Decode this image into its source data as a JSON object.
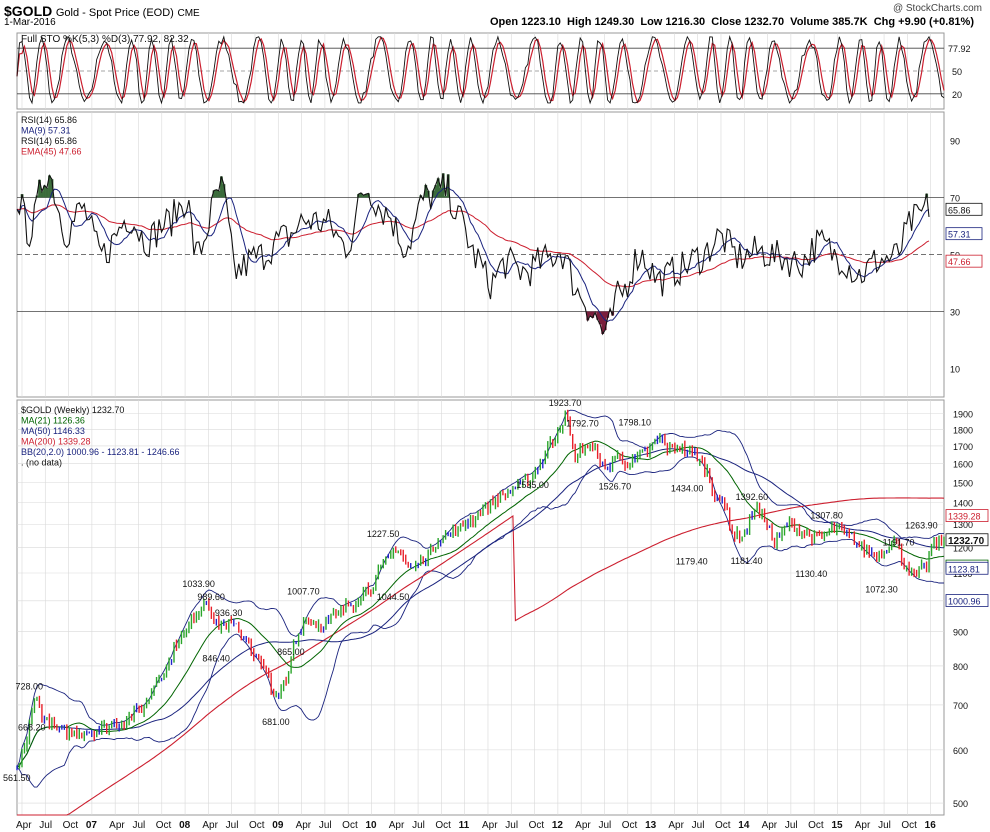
{
  "header": {
    "symbol": "$GOLD",
    "description": "Gold - Spot Price (EOD)",
    "exchange": "CME",
    "date": "1-Mar-2016",
    "watermark": "@ StockCharts.com",
    "ohlc_text": "Open 1223.10  High 1249.30  Low 1216.30  Close 1232.70  Volume 385.7K  Chg +9.90 (+0.81%)"
  },
  "colors": {
    "up": "#2aa52a",
    "down": "#e8202a",
    "neutral": "#2222cc",
    "ma21": "#006400",
    "ma50": "#1a237e",
    "ma200": "#cc1f2f",
    "bb": "#1a237e",
    "rsi": "#111111",
    "rsi_ma": "#1a237e",
    "rsi_ema": "#cc1f2f",
    "grid": "#d9d9d9",
    "overbought_fill": "#3a6b3a",
    "oversold_fill": "#7a1f3d"
  },
  "chart_data": [
    {
      "panel": "stochastics",
      "type": "line",
      "legend": [
        "Full STO %K(5,3) %D(3) 77.92, 82.32"
      ],
      "ylim": [
        0,
        100
      ],
      "ticks": [
        20,
        50,
        80
      ],
      "levels": [
        20,
        50,
        80
      ],
      "latest": {
        "k": 77.92,
        "d": 82.32
      },
      "right_labels": [
        "77.92",
        "50",
        "20"
      ]
    },
    {
      "panel": "rsi",
      "type": "line",
      "legend": [
        "RSI(14) 65.86",
        "MA(9) 57.31",
        "RSI(14) 65.86",
        "EMA(45) 47.66"
      ],
      "ylim": [
        0,
        100
      ],
      "ticks": [
        10,
        30,
        50,
        70,
        90
      ],
      "levels": [
        30,
        50,
        70
      ],
      "anchors": [
        [
          0,
          70
        ],
        [
          5,
          58
        ],
        [
          12,
          79
        ],
        [
          20,
          58
        ],
        [
          26,
          66
        ],
        [
          34,
          50
        ],
        [
          45,
          63
        ],
        [
          52,
          55
        ],
        [
          60,
          61
        ],
        [
          68,
          69
        ],
        [
          72,
          50
        ],
        [
          82,
          73
        ],
        [
          88,
          44
        ],
        [
          96,
          49
        ],
        [
          108,
          56
        ],
        [
          116,
          62
        ],
        [
          124,
          61
        ],
        [
          132,
          53
        ],
        [
          140,
          73
        ],
        [
          148,
          65
        ],
        [
          156,
          53
        ],
        [
          164,
          70
        ],
        [
          172,
          73
        ],
        [
          178,
          62
        ],
        [
          184,
          49
        ],
        [
          190,
          40
        ],
        [
          196,
          47
        ],
        [
          204,
          44
        ],
        [
          212,
          48
        ],
        [
          218,
          51
        ],
        [
          226,
          36
        ],
        [
          232,
          28
        ],
        [
          236,
          22
        ],
        [
          242,
          36
        ],
        [
          250,
          50
        ],
        [
          258,
          41
        ],
        [
          266,
          45
        ],
        [
          274,
          49
        ],
        [
          282,
          56
        ],
        [
          290,
          49
        ],
        [
          298,
          51
        ],
        [
          306,
          49
        ],
        [
          314,
          47
        ],
        [
          322,
          54
        ],
        [
          330,
          49
        ],
        [
          338,
          43
        ],
        [
          346,
          48
        ],
        [
          352,
          49
        ],
        [
          360,
          62
        ],
        [
          366,
          67
        ]
      ],
      "latest": {
        "rsi": 65.86,
        "ma9": 57.31,
        "ema45": 47.66
      },
      "right_labels": [
        "65.86",
        "57.31",
        "47.66"
      ]
    },
    {
      "panel": "price",
      "type": "ohlc",
      "legend": [
        "$GOLD (Weekly) 1232.70",
        "MA(21) 1126.36",
        "MA(50) 1146.33",
        "MA(200) 1339.28",
        "BB(20,2.0) 1000.96 - 1123.81 - 1246.66",
        ". (no data)"
      ],
      "scale": "log",
      "ylim": [
        480,
        1990
      ],
      "ticks": [
        500,
        600,
        700,
        800,
        900,
        1000,
        1100,
        1200,
        1300,
        1400,
        1500,
        1600,
        1700,
        1800,
        1900
      ],
      "anchors": [
        [
          0,
          565
        ],
        [
          3,
          600
        ],
        [
          7,
          715
        ],
        [
          12,
          660
        ],
        [
          18,
          635
        ],
        [
          30,
          640
        ],
        [
          40,
          655
        ],
        [
          50,
          690
        ],
        [
          58,
          780
        ],
        [
          66,
          880
        ],
        [
          72,
          960
        ],
        [
          76,
          1005
        ],
        [
          80,
          920
        ],
        [
          86,
          920
        ],
        [
          92,
          880
        ],
        [
          96,
          820
        ],
        [
          100,
          780
        ],
        [
          104,
          715
        ],
        [
          108,
          760
        ],
        [
          112,
          880
        ],
        [
          116,
          940
        ],
        [
          122,
          920
        ],
        [
          128,
          950
        ],
        [
          134,
          990
        ],
        [
          142,
          1050
        ],
        [
          148,
          1140
        ],
        [
          152,
          1200
        ],
        [
          158,
          1115
        ],
        [
          164,
          1160
        ],
        [
          170,
          1240
        ],
        [
          176,
          1270
        ],
        [
          182,
          1320
        ],
        [
          188,
          1380
        ],
        [
          194,
          1430
        ],
        [
          200,
          1470
        ],
        [
          206,
          1520
        ],
        [
          210,
          1600
        ],
        [
          214,
          1710
        ],
        [
          218,
          1820
        ],
        [
          220,
          1880
        ],
        [
          224,
          1640
        ],
        [
          228,
          1700
        ],
        [
          232,
          1680
        ],
        [
          236,
          1560
        ],
        [
          240,
          1640
        ],
        [
          246,
          1600
        ],
        [
          252,
          1660
        ],
        [
          258,
          1740
        ],
        [
          262,
          1680
        ],
        [
          266,
          1690
        ],
        [
          272,
          1650
        ],
        [
          276,
          1580
        ],
        [
          280,
          1450
        ],
        [
          284,
          1380
        ],
        [
          288,
          1250
        ],
        [
          292,
          1260
        ],
        [
          296,
          1380
        ],
        [
          300,
          1320
        ],
        [
          304,
          1220
        ],
        [
          310,
          1300
        ],
        [
          316,
          1260
        ],
        [
          322,
          1240
        ],
        [
          328,
          1280
        ],
        [
          334,
          1250
        ],
        [
          340,
          1190
        ],
        [
          346,
          1170
        ],
        [
          352,
          1230
        ],
        [
          356,
          1140
        ],
        [
          360,
          1090
        ],
        [
          364,
          1120
        ],
        [
          368,
          1210
        ],
        [
          372,
          1232.7
        ]
      ],
      "annotations": [
        {
          "label": "728.00"
        },
        {
          "label": "668.20"
        },
        {
          "label": "561.50"
        },
        {
          "label": "1033.90"
        },
        {
          "label": "989.60"
        },
        {
          "label": "936.30"
        },
        {
          "label": "846.40"
        },
        {
          "label": "681.00"
        },
        {
          "label": "1007.70"
        },
        {
          "label": "865.00"
        },
        {
          "label": "1227.50"
        },
        {
          "label": "1044.50"
        },
        {
          "label": "1923.70"
        },
        {
          "label": "1535.00"
        },
        {
          "label": "1792.70"
        },
        {
          "label": "1798.10"
        },
        {
          "label": "1526.70"
        },
        {
          "label": "1434.00"
        },
        {
          "label": "1392.60"
        },
        {
          "label": "1179.40"
        },
        {
          "label": "1181.40"
        },
        {
          "label": "1307.80"
        },
        {
          "label": "1130.40"
        },
        {
          "label": "1191.70"
        },
        {
          "label": "1263.90"
        },
        {
          "label": "1072.30"
        }
      ],
      "right_labels": [
        "1339.28",
        "1232.70",
        "1126.36",
        "1123.81",
        "1000.96"
      ],
      "latest": {
        "close": 1232.7,
        "ma21": 1126.36,
        "ma50": 1146.33,
        "ma200": 1339.28,
        "bb_lower": 1000.96,
        "bb_mid": 1123.81,
        "bb_upper": 1246.66
      }
    }
  ],
  "x_axis": {
    "labels": [
      "Apr",
      "Jul",
      "Oct",
      "07",
      "Apr",
      "Jul",
      "Oct",
      "08",
      "Apr",
      "Jul",
      "Oct",
      "09",
      "Apr",
      "Jul",
      "Oct",
      "10",
      "Apr",
      "Jul",
      "Oct",
      "11",
      "Apr",
      "Jul",
      "Oct",
      "12",
      "Apr",
      "Jul",
      "Oct",
      "13",
      "Apr",
      "Jul",
      "Oct",
      "14",
      "Apr",
      "Jul",
      "Oct",
      "15",
      "Apr",
      "Jul",
      "Oct",
      "16"
    ]
  }
}
